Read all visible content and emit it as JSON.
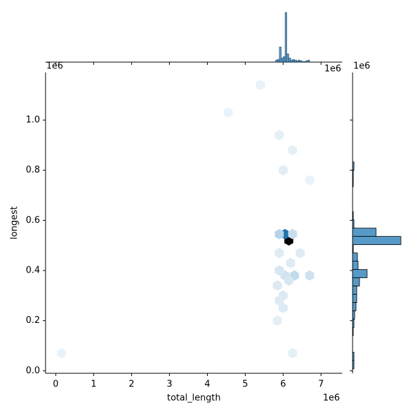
{
  "chart_data": {
    "type": "hexbin",
    "x_label": "total_length",
    "y_label": "longest",
    "x_offset": "1e6",
    "y_offset": "1e6",
    "top_margin_offset": "1e6",
    "right_margin_offset": "1e6",
    "color": "#1f77b4",
    "xlim": [
      -0.27,
      7.56
    ],
    "xticks": [
      0,
      1,
      2,
      3,
      4,
      5,
      6,
      7
    ],
    "ylim": [
      -0.01,
      1.19
    ],
    "yticks": [
      {
        "value": 0,
        "label": "0.0"
      },
      0.2,
      0.4,
      0.6,
      0.8,
      {
        "value": 1,
        "label": "1.0"
      }
    ],
    "hexbins": {
      "x": [
        6.15,
        6.05,
        5.9,
        6.25,
        6.3,
        6.05,
        6.7,
        5.9,
        6.15,
        5.85,
        6.0,
        5.9,
        6.0,
        6.45,
        6.0,
        6.25,
        5.9,
        5.4,
        0.15,
        6.25,
        5.85,
        4.55,
        6.7,
        5.9,
        6.2
      ],
      "y": [
        0.52,
        0.545,
        0.545,
        0.545,
        0.38,
        0.38,
        0.38,
        0.4,
        0.36,
        0.34,
        0.3,
        0.28,
        0.25,
        0.47,
        0.8,
        0.88,
        0.94,
        1.14,
        0.07,
        0.07,
        0.2,
        1.03,
        0.76,
        0.47,
        0.43
      ],
      "counts": [
        100,
        60,
        15,
        10,
        12,
        8,
        8,
        6,
        6,
        5,
        5,
        4,
        4,
        4,
        3,
        2,
        2,
        1,
        1,
        2,
        2,
        1,
        1,
        4,
        4
      ]
    },
    "top_hist": {
      "bins": [
        5.8,
        5.85,
        5.9,
        5.95,
        6.0,
        6.05,
        6.1,
        6.15,
        6.2,
        6.25,
        6.3,
        6.35,
        6.4,
        6.45,
        6.5,
        6.55,
        6.6,
        6.65,
        6.7
      ],
      "counts": [
        3,
        4,
        22,
        6,
        8,
        72,
        12,
        6,
        3,
        4,
        3,
        2,
        3,
        2,
        1,
        1,
        2,
        3
      ]
    },
    "right_hist": {
      "bins": [
        0.008,
        0.041,
        0.074,
        0.107,
        0.14,
        0.173,
        0.206,
        0.239,
        0.272,
        0.305,
        0.338,
        0.371,
        0.404,
        0.437,
        0.47,
        0.503,
        0.536,
        0.569,
        0.602,
        0.635,
        0.668,
        0.701,
        0.734,
        0.767,
        0.8,
        0.833
      ],
      "counts": [
        2,
        2,
        0,
        0,
        1,
        2,
        3,
        5,
        6,
        6,
        10,
        21,
        8,
        7,
        1,
        70,
        34,
        2,
        1,
        0,
        0,
        0,
        1,
        1,
        2
      ]
    }
  }
}
